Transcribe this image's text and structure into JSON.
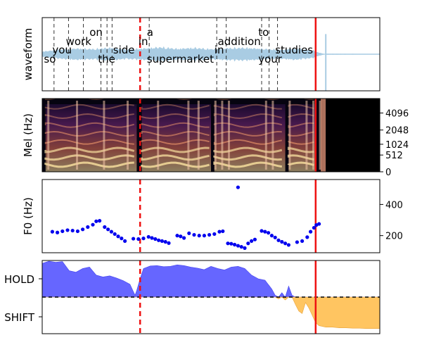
{
  "colors": {
    "waveform": "#a9cce3",
    "word_boundary": "#333333",
    "marker": "#ee1111",
    "f0_points": "#0000ee",
    "hold_fill": "#6666ff",
    "shift_fill": "#ffc561",
    "threshold": "#000000",
    "spec_dark": "#060410",
    "spec_mid": "#7c2a7f",
    "spec_bright": "#fbe3a0"
  },
  "chart_data": [
    {
      "type": "area",
      "name": "waveform",
      "ylabel": "waveform",
      "xlim": [
        0,
        10.0
      ],
      "ylim": [
        -1.0,
        1.0
      ],
      "red_markers_s": [
        2.9,
        8.1
      ],
      "ticks_visible": false,
      "envelope_x": [
        0.0,
        0.5,
        1.0,
        1.5,
        2.0,
        2.5,
        3.0,
        3.5,
        4.0,
        4.5,
        5.0,
        5.5,
        6.0,
        6.5,
        7.0,
        7.5,
        8.0,
        8.1,
        8.15,
        8.3,
        8.35,
        10.0
      ],
      "envelope_y": [
        0.08,
        0.14,
        0.18,
        0.16,
        0.2,
        0.15,
        0.18,
        0.22,
        0.17,
        0.2,
        0.16,
        0.19,
        0.2,
        0.17,
        0.14,
        0.18,
        0.12,
        0.1,
        0.06,
        0.02,
        0.01,
        0.005
      ],
      "spike": {
        "x": 8.4,
        "top": 0.55,
        "bottom": -1.3
      },
      "word_boundaries": [
        0.35,
        0.78,
        1.22,
        1.74,
        1.92,
        2.07,
        3.17,
        5.17,
        5.45,
        6.5,
        6.72,
        6.97
      ],
      "words": [
        {
          "text": "so",
          "row": 3
        },
        {
          "text": "you",
          "row": 2
        },
        {
          "text": "work",
          "row": 1
        },
        {
          "text": "on",
          "row": 0
        },
        {
          "text": "the",
          "row": 3
        },
        {
          "text": "side",
          "row": 2
        },
        {
          "text": "in",
          "row": 1
        },
        {
          "text": "a",
          "row": 0
        },
        {
          "text": "supermarket",
          "row": 3
        },
        {
          "text": "in",
          "row": 2
        },
        {
          "text": "addition",
          "row": 1
        },
        {
          "text": "to",
          "row": 0
        },
        {
          "text": "your",
          "row": 3
        },
        {
          "text": "studies",
          "row": 2
        }
      ],
      "word_x": [
        0.05,
        0.3,
        0.7,
        1.4,
        1.65,
        2.1,
        2.85,
        3.1,
        3.1,
        5.1,
        5.2,
        6.4,
        6.4,
        6.9
      ]
    },
    {
      "type": "heatmap",
      "name": "mel_spectrogram",
      "ylabel": "Mel (Hz)",
      "yticks": [
        0,
        512,
        1024,
        2048,
        4096
      ],
      "ytick_labels": [
        "0",
        "512",
        "1024",
        "2048",
        "4096"
      ],
      "ylim": [
        0,
        7000
      ],
      "xlim": [
        0,
        10.0
      ],
      "red_markers_s": [
        2.9,
        8.1
      ],
      "voiced_until_s": 8.25,
      "silence_after_s": 8.4,
      "voiced_segments": [
        [
          0.1,
          2.8
        ],
        [
          2.95,
          5.0
        ],
        [
          5.1,
          7.2
        ],
        [
          7.3,
          8.1
        ]
      ]
    },
    {
      "type": "scatter",
      "name": "f0",
      "ylabel": "F0 (Hz)",
      "ylim": [
        90,
        560
      ],
      "xlim": [
        0,
        10.0
      ],
      "yticks": [
        200,
        400
      ],
      "ytick_labels": [
        "200",
        "400"
      ],
      "red_markers_s": [
        2.9,
        8.1
      ],
      "points": [
        [
          0.3,
          225
        ],
        [
          0.45,
          220
        ],
        [
          0.6,
          228
        ],
        [
          0.75,
          235
        ],
        [
          0.9,
          232
        ],
        [
          1.05,
          228
        ],
        [
          1.2,
          240
        ],
        [
          1.35,
          255
        ],
        [
          1.5,
          270
        ],
        [
          1.6,
          292
        ],
        [
          1.7,
          295
        ],
        [
          1.85,
          255
        ],
        [
          1.95,
          240
        ],
        [
          2.05,
          225
        ],
        [
          2.15,
          210
        ],
        [
          2.25,
          195
        ],
        [
          2.35,
          182
        ],
        [
          2.45,
          165
        ],
        [
          2.7,
          180
        ],
        [
          2.85,
          178
        ],
        [
          3.0,
          182
        ],
        [
          3.15,
          192
        ],
        [
          3.25,
          185
        ],
        [
          3.35,
          178
        ],
        [
          3.45,
          170
        ],
        [
          3.55,
          165
        ],
        [
          3.65,
          160
        ],
        [
          3.75,
          152
        ],
        [
          4.0,
          200
        ],
        [
          4.1,
          195
        ],
        [
          4.2,
          185
        ],
        [
          4.35,
          215
        ],
        [
          4.5,
          205
        ],
        [
          4.65,
          200
        ],
        [
          4.8,
          200
        ],
        [
          4.95,
          205
        ],
        [
          5.1,
          210
        ],
        [
          5.25,
          225
        ],
        [
          5.35,
          228
        ],
        [
          5.5,
          150
        ],
        [
          5.6,
          148
        ],
        [
          5.7,
          142
        ],
        [
          5.8,
          135
        ],
        [
          5.9,
          128
        ],
        [
          6.0,
          120
        ],
        [
          6.1,
          150
        ],
        [
          6.2,
          165
        ],
        [
          6.3,
          175
        ],
        [
          6.5,
          230
        ],
        [
          6.6,
          225
        ],
        [
          6.7,
          218
        ],
        [
          6.8,
          200
        ],
        [
          6.9,
          188
        ],
        [
          7.0,
          170
        ],
        [
          7.1,
          160
        ],
        [
          7.2,
          150
        ],
        [
          7.3,
          140
        ],
        [
          7.55,
          158
        ],
        [
          7.7,
          165
        ],
        [
          7.85,
          190
        ],
        [
          7.95,
          225
        ],
        [
          8.05,
          250
        ],
        [
          8.12,
          268
        ],
        [
          8.2,
          275
        ],
        [
          5.8,
          510
        ]
      ]
    },
    {
      "type": "area",
      "name": "turn_taking",
      "ytick_labels": [
        "HOLD",
        "SHIFT"
      ],
      "threshold": 0.0,
      "ylim": [
        -1.0,
        1.0
      ],
      "xlim": [
        0,
        10.0
      ],
      "red_markers_s": [
        2.9,
        8.1
      ],
      "x": [
        0.0,
        0.2,
        0.4,
        0.6,
        0.8,
        1.0,
        1.2,
        1.4,
        1.6,
        1.8,
        2.0,
        2.2,
        2.4,
        2.6,
        2.75,
        2.8,
        2.9,
        3.0,
        3.2,
        3.4,
        3.6,
        3.8,
        4.0,
        4.2,
        4.4,
        4.6,
        4.8,
        5.0,
        5.2,
        5.4,
        5.6,
        5.8,
        6.0,
        6.2,
        6.4,
        6.6,
        6.8,
        6.9,
        7.0,
        7.1,
        7.2,
        7.3,
        7.4,
        7.5,
        7.6,
        7.7,
        7.8,
        7.9,
        8.0,
        8.1,
        8.2,
        8.4,
        8.6,
        8.8,
        9.0,
        9.2,
        9.4,
        9.6,
        9.8,
        10.0
      ],
      "y": [
        0.92,
        0.98,
        0.95,
        0.97,
        0.72,
        0.68,
        0.78,
        0.82,
        0.6,
        0.55,
        0.58,
        0.52,
        0.45,
        0.35,
        0.05,
        0.18,
        0.5,
        0.78,
        0.85,
        0.86,
        0.83,
        0.84,
        0.88,
        0.86,
        0.82,
        0.79,
        0.75,
        0.84,
        0.78,
        0.74,
        0.82,
        0.84,
        0.78,
        0.6,
        0.5,
        0.46,
        0.22,
        0.05,
        -0.05,
        0.12,
        -0.08,
        0.3,
        0.05,
        -0.2,
        -0.38,
        -0.45,
        -0.15,
        -0.3,
        -0.5,
        -0.7,
        -0.78,
        -0.82,
        -0.82,
        -0.84,
        -0.84,
        -0.85,
        -0.85,
        -0.86,
        -0.86,
        -0.86
      ]
    }
  ]
}
